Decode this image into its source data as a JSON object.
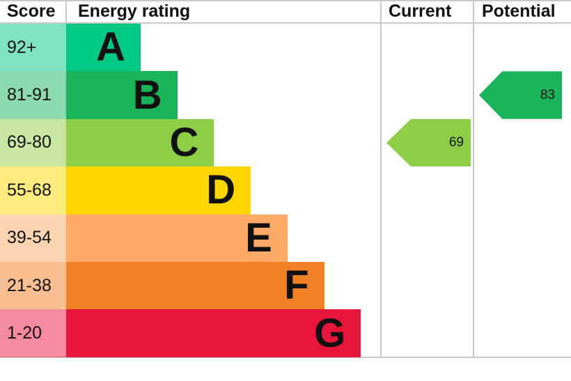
{
  "header": {
    "score": "Score",
    "rating": "Energy rating",
    "current": "Current",
    "potential": "Potential"
  },
  "chart_data": {
    "type": "bar",
    "title": "Energy rating",
    "orientation": "horizontal",
    "bands": [
      {
        "letter": "A",
        "score": "92+",
        "color": "#00c781"
      },
      {
        "letter": "B",
        "score": "81-91",
        "color": "#19b459"
      },
      {
        "letter": "C",
        "score": "69-80",
        "color": "#8dce46"
      },
      {
        "letter": "D",
        "score": "55-68",
        "color": "#ffd500"
      },
      {
        "letter": "E",
        "score": "39-54",
        "color": "#fcaa65"
      },
      {
        "letter": "F",
        "score": "21-38",
        "color": "#ef8023"
      },
      {
        "letter": "G",
        "score": "1-20",
        "color": "#e9153b"
      }
    ],
    "current": {
      "value": 69,
      "band": "C",
      "band_index": 2,
      "color": "#8dce46"
    },
    "potential": {
      "value": 83,
      "band": "B",
      "band_index": 1,
      "color": "#19b459"
    }
  },
  "grid_color": "#c9c9c9"
}
